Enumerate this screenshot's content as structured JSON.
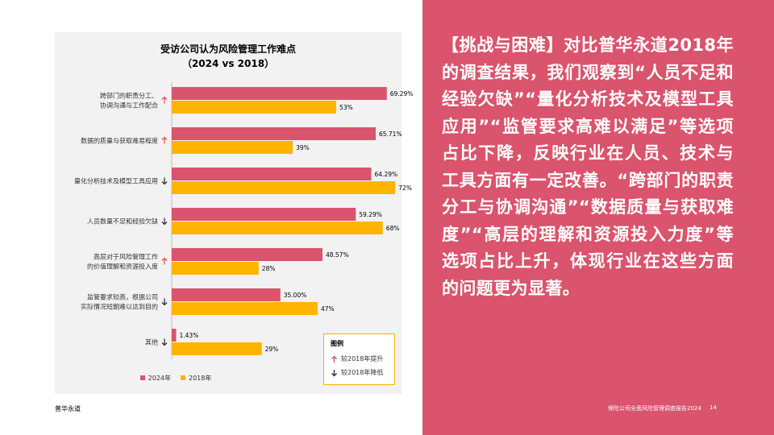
{
  "chart_data": {
    "type": "bar",
    "orientation": "horizontal",
    "title": "受访公司认为风险管理工作难点",
    "subtitle": "（2024 vs 2018）",
    "categories": [
      "跨部门的职责分工、\n协调沟通与工作配合",
      "数据的质量与获取难易程度",
      "量化分析技术及模型工具应用",
      "人员数量不足和经验欠缺",
      "高层对于风险管理工作\n的价值理解和资源投入度",
      "监管要求较高，根据公司\n实际情况短期难以达到目的",
      "其他"
    ],
    "trend": [
      "up",
      "up",
      "down",
      "down",
      "up",
      "down",
      "down"
    ],
    "series": [
      {
        "name": "2024年",
        "color": "#d9546c",
        "values": [
          69.29,
          65.71,
          64.29,
          59.29,
          48.57,
          35.0,
          1.43
        ],
        "labels": [
          "69.29%",
          "65.71%",
          "64.29%",
          "59.29%",
          "48.57%",
          "35.00%",
          "1.43%"
        ]
      },
      {
        "name": "2018年",
        "color": "#ffb400",
        "values": [
          53,
          39,
          72,
          68,
          28,
          47,
          29
        ],
        "labels": [
          "53%",
          "39%",
          "72%",
          "68%",
          "28%",
          "47%",
          "29%"
        ]
      }
    ],
    "xlim": [
      0,
      100
    ],
    "legend": {
      "position": "bottom"
    },
    "trend_legend": {
      "title": "图例",
      "up": "较2018年提升",
      "down": "较2018年降低",
      "position": "bottom-right"
    },
    "up_color": "#d9546c",
    "down_color": "#333333"
  },
  "body_text": "【挑战与困难】对比普华永道2018年的调查结果，我们观察到“人员不足和经验欠缺”“量化分析技术及模型工具应用”“监管要求高难以满足”等选项占比下降，反映行业在人员、技术与工具方面有一定改善。“跨部门的职责分工与协调沟通”“数据质量与获取难度”“高层的理解和资源投入力度”等选项占比上升，体现行业在这些方面的问题更为显著。",
  "footer": {
    "brand": "普华永道",
    "report": "保险公司全面风险管理调查报告2024",
    "page": "14"
  },
  "colors": {
    "accent": "#d9546c",
    "bar2018": "#ffb400",
    "legend_border": "#f0b400"
  }
}
